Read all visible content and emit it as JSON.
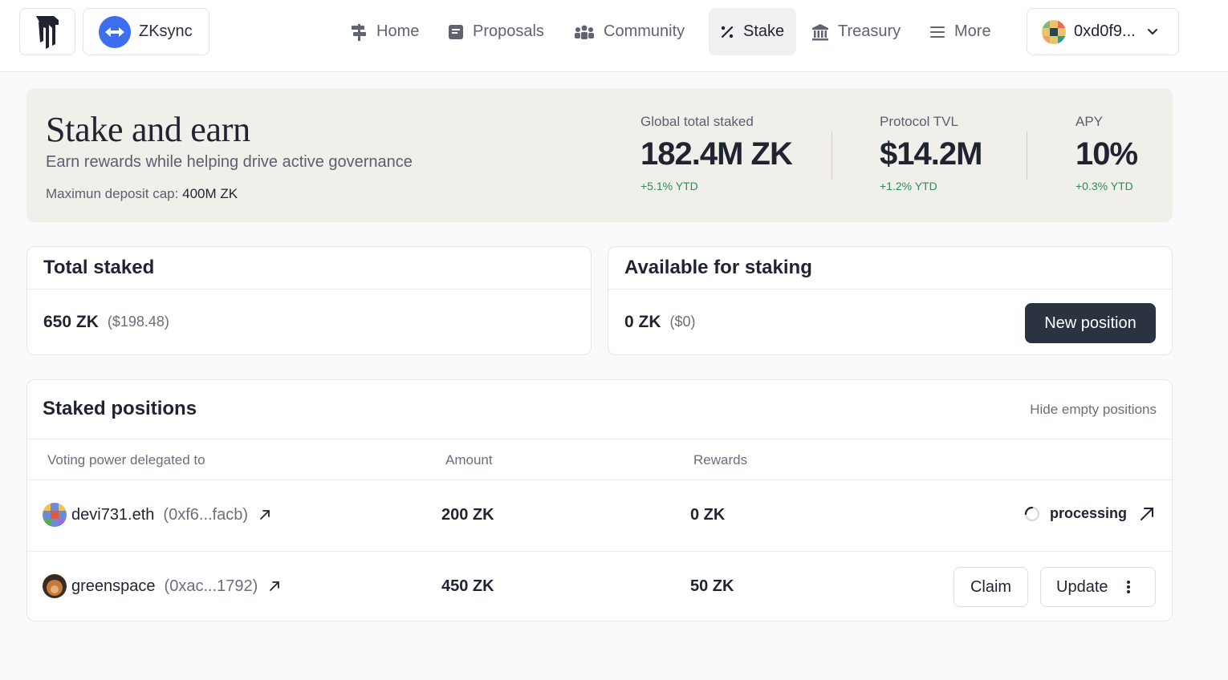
{
  "org": {
    "name": "ZKsync"
  },
  "nav": [
    {
      "label": "Home",
      "icon": "signpost-icon"
    },
    {
      "label": "Proposals",
      "icon": "document-icon"
    },
    {
      "label": "Community",
      "icon": "people-icon"
    },
    {
      "label": "Stake",
      "icon": "percent-icon",
      "active": true
    },
    {
      "label": "Treasury",
      "icon": "bank-icon"
    },
    {
      "label": "More",
      "icon": "menu-icon"
    }
  ],
  "wallet": {
    "address": "0xd0f9..."
  },
  "hero": {
    "title": "Stake and earn",
    "subtitle": "Earn rewards while helping drive active governance",
    "cap_label": "Maximun deposit cap:",
    "cap_value": "400M ZK",
    "stats": [
      {
        "label": "Global total staked",
        "value": "182.4M ZK",
        "change": "+5.1% YTD"
      },
      {
        "label": "Protocol TVL",
        "value": "$14.2M",
        "change": "+1.2% YTD"
      },
      {
        "label": "APY",
        "value": "10%",
        "change": "+0.3% YTD"
      }
    ]
  },
  "total_staked": {
    "title": "Total staked",
    "amount": "650 ZK",
    "usd": "($198.48)"
  },
  "available": {
    "title": "Available for staking",
    "amount": "0 ZK",
    "usd": "($0)",
    "button": "New position"
  },
  "positions": {
    "title": "Staked positions",
    "hide_label": "Hide empty positions",
    "columns": [
      "Voting power delegated to",
      "Amount",
      "Rewards"
    ],
    "rows": [
      {
        "name": "devi731.eth",
        "address": "(0xf6...facb)",
        "amount": "200 ZK",
        "rewards": "0 ZK",
        "status": "processing"
      },
      {
        "name": "greenspace",
        "address": "(0xac...1792)",
        "amount": "450 ZK",
        "rewards": "50 ZK",
        "claim": "Claim",
        "update": "Update"
      }
    ]
  },
  "colors": {
    "accent_dark": "#2b3240",
    "positive": "#2f8a5e",
    "hero_bg": "#f1efea",
    "org_blue": "#3b6ff0"
  }
}
